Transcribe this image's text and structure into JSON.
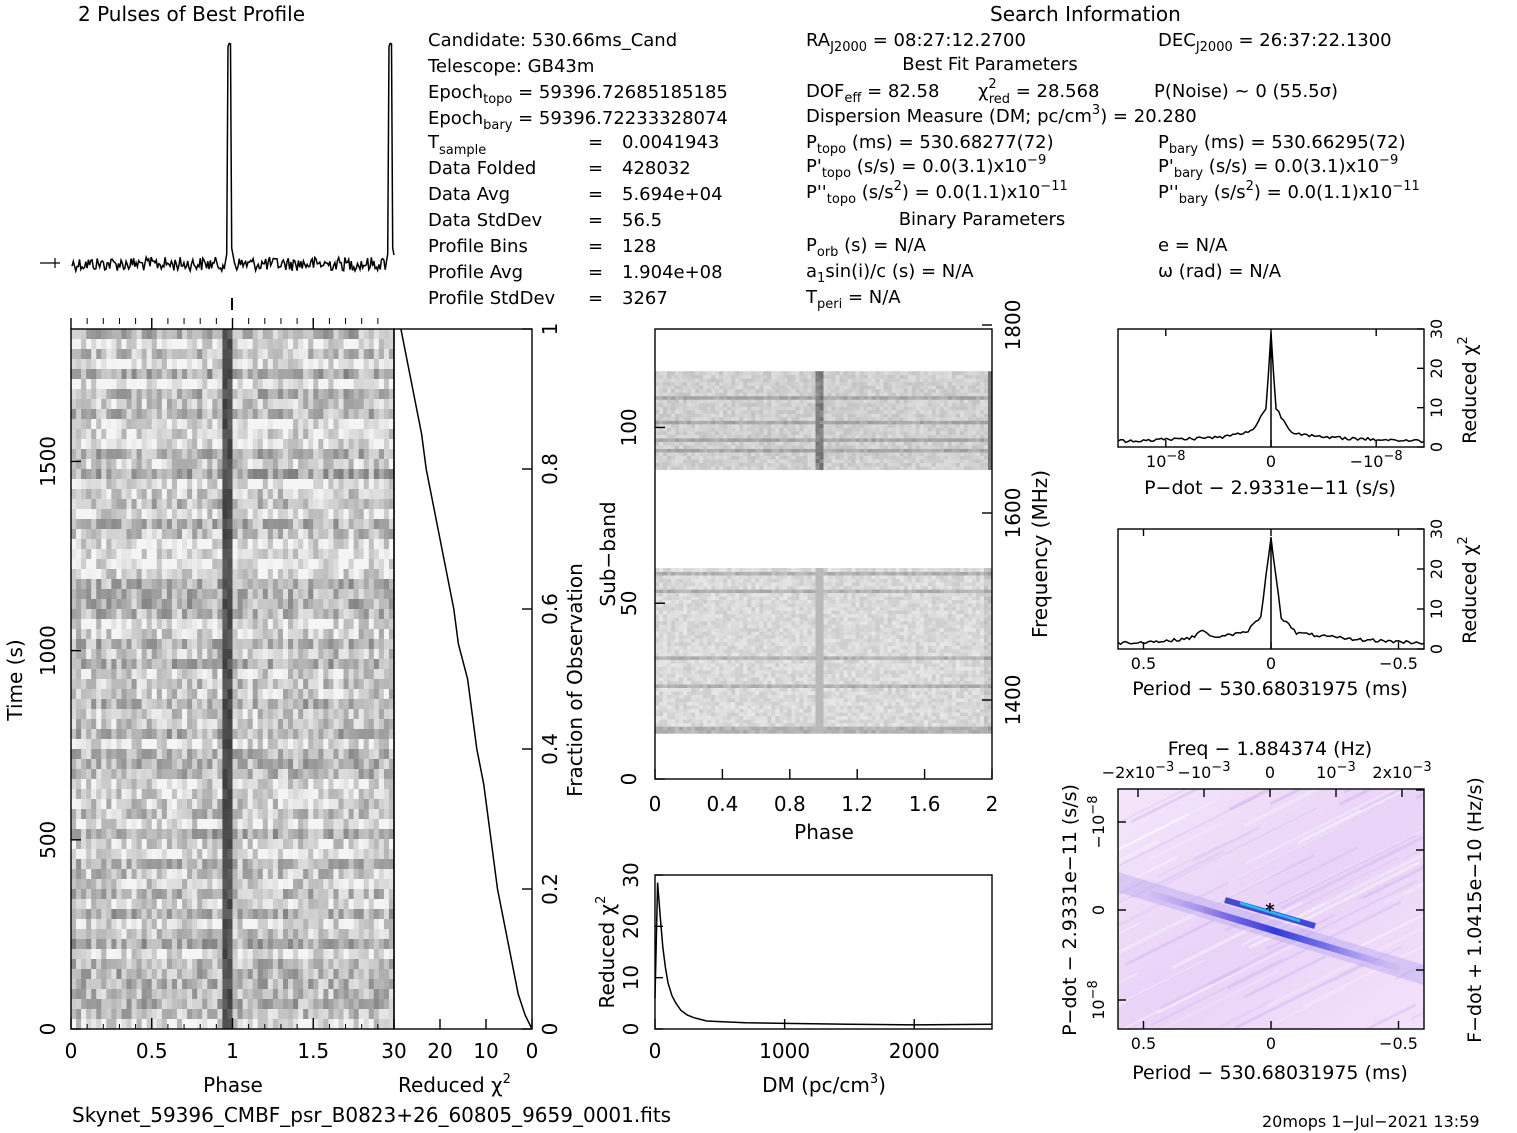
{
  "header": {
    "profile_title": "2 Pulses of Best Profile",
    "search_title": "Search Information"
  },
  "info": {
    "candidate": "Candidate:  530.66ms_Cand",
    "telescope": "Telescope:  GB43m",
    "epoch_topo_label": "Epoch",
    "epoch_topo_sub": "topo",
    "epoch_topo_val": " = 59396.72685185185",
    "epoch_bary_label": "Epoch",
    "epoch_bary_sub": "bary",
    "epoch_bary_val": " = 59396.72233328074",
    "tsample_label": "T",
    "tsample_sub": "sample",
    "tsample_eq": "=",
    "tsample_val": "0.0041943",
    "rows": [
      {
        "label": "Data Folded",
        "eq": "=",
        "val": "428032"
      },
      {
        "label": "Data Avg",
        "eq": "=",
        "val": "5.694e+04"
      },
      {
        "label": "Data StdDev",
        "eq": "=",
        "val": "56.5"
      },
      {
        "label": "Profile Bins",
        "eq": "=",
        "val": "128"
      },
      {
        "label": "Profile Avg",
        "eq": "=",
        "val": "1.904e+08"
      },
      {
        "label": "Profile StdDev",
        "eq": "=",
        "val": "3267"
      }
    ]
  },
  "search": {
    "ra_label": "RA",
    "ra_sub": "J2000",
    "ra_val": " = 08:27:12.2700",
    "dec_label": "DEC",
    "dec_sub": "J2000",
    "dec_val": " = 26:37:22.1300",
    "best_fit_title": "Best Fit Parameters",
    "dof_label": "DOF",
    "dof_sub": "eff",
    "dof_val": " = 82.58",
    "chi_label": "χ",
    "chi_sup": "2",
    "chi_sub": "red",
    "chi_val": " = 28.568",
    "pnoise": "P(Noise) ~ 0    (55.5σ)",
    "dm_label": "Dispersion Measure (DM; pc/cm",
    "dm_sup": "3",
    "dm_val": ") = 20.280",
    "ptopo_label": "P",
    "ptopo_sub": "topo",
    "ptopo_val": " (ms) =  530.68277(72)",
    "pbary_label": "P",
    "pbary_sub": "bary",
    "pbary_val": " (ms) =  530.66295(72)",
    "pdtopo_label": "P'",
    "pdtopo_sub": "topo",
    "pdtopo_val": " (s/s) = 0.0(3.1)x10",
    "pdtopo_exp": "−9",
    "pdbary_label": "P'",
    "pdbary_sub": "bary",
    "pdbary_val": " (s/s) = 0.0(3.1)x10",
    "pdbary_exp": "−9",
    "pddtopo_label": "P''",
    "pddtopo_sub": "topo",
    "pddtopo_val1": " (s/s",
    "pddtopo_sup": "2",
    "pddtopo_val2": ") = 0.0(1.1)x10",
    "pddtopo_exp": "−11",
    "pddbary_label": "P''",
    "pddbary_sub": "bary",
    "pddbary_val1": " (s/s",
    "pddbary_sup": "2",
    "pddbary_val2": ") = 0.0(1.1)x10",
    "pddbary_exp": "−11",
    "binary_title": "Binary Parameters",
    "porb_label": "P",
    "porb_sub": "orb",
    "porb_val": " (s) = N/A",
    "e_val": "e = N/A",
    "a1_label": "a",
    "a1_sub": "1",
    "a1_val": "sin(i)/c (s) = N/A",
    "omega_val": "ω (rad) = N/A",
    "tperi_label": "T",
    "tperi_sub": "peri",
    "tperi_val": " = N/A"
  },
  "footer": {
    "filename": "Skynet_59396_CMBF_psr_B0823+26_60805_9659_0001.fits",
    "stamp": "20mops   1−Jul−2021 13:59"
  },
  "chart_data": [
    {
      "id": "pulse-profile",
      "type": "line",
      "title": "2 Pulses of Best Profile",
      "x_range": [
        0,
        2
      ],
      "peaks_at_phase": [
        0.98,
        1.98
      ],
      "baseline_relative": 0.0,
      "peak_relative": 1.0
    },
    {
      "id": "time-phase",
      "type": "heatmap",
      "xlabel": "Phase",
      "ylabel": "Time (s)",
      "xlim": [
        0,
        2
      ],
      "ylim": [
        0,
        1850
      ],
      "x_ticks": [
        "0",
        "0.5",
        "1",
        "1.5"
      ],
      "y_ticks": [
        "0",
        "500",
        "1000",
        "1500"
      ],
      "pulse_phase": [
        0.98
      ]
    },
    {
      "id": "chi2-vs-time",
      "type": "line",
      "xlabel": "Reduced χ",
      "xlabel_sup": "2",
      "ylabel": "Fraction of Observation",
      "xlim": [
        30,
        0
      ],
      "ylim": [
        0,
        1
      ],
      "x_ticks": [
        "30",
        "20",
        "10",
        "0"
      ],
      "y_ticks": [
        "0",
        "0.2",
        "0.4",
        "0.6",
        "0.8",
        "1"
      ],
      "points": [
        [
          0,
          0.0
        ],
        [
          1.5,
          0.02
        ],
        [
          3,
          0.05
        ],
        [
          4.5,
          0.1
        ],
        [
          6,
          0.15
        ],
        [
          7.5,
          0.2
        ],
        [
          8.5,
          0.25
        ],
        [
          9.5,
          0.3
        ],
        [
          10.5,
          0.35
        ],
        [
          12,
          0.4
        ],
        [
          13,
          0.45
        ],
        [
          14,
          0.5
        ],
        [
          16,
          0.55
        ],
        [
          17,
          0.6
        ],
        [
          18.5,
          0.65
        ],
        [
          20,
          0.7
        ],
        [
          21.5,
          0.75
        ],
        [
          23,
          0.8
        ],
        [
          24,
          0.85
        ],
        [
          25.5,
          0.9
        ],
        [
          27,
          0.95
        ],
        [
          28.5,
          1.0
        ]
      ]
    },
    {
      "id": "subband-phase",
      "type": "heatmap",
      "xlabel": "Phase",
      "ylabel": "Sub−band",
      "y2label": "Frequency (MHz)",
      "xlim": [
        0,
        2
      ],
      "ylim": [
        0,
        128
      ],
      "x_ticks": [
        "0",
        "0.4",
        "0.8",
        "1.2",
        "1.6",
        "2"
      ],
      "y_ticks": [
        "0",
        "50",
        "100"
      ],
      "y2_ticks": [
        "1400",
        "1600",
        "1800"
      ],
      "bands": [
        [
          13,
          60
        ],
        [
          88,
          116
        ]
      ],
      "pulse_phase": [
        0.98
      ]
    },
    {
      "id": "chi2-vs-dm",
      "type": "line",
      "xlabel": "DM (pc/cm",
      "xlabel_sup": "3",
      "ylabel": "Reduced χ",
      "ylabel_sup": "2",
      "xlim": [
        0,
        2600
      ],
      "ylim": [
        0,
        30
      ],
      "x_ticks": [
        "0",
        "1000",
        "2000"
      ],
      "y_ticks": [
        "0",
        "10",
        "20",
        "30"
      ],
      "points": [
        [
          0,
          6
        ],
        [
          20,
          28.5
        ],
        [
          40,
          22
        ],
        [
          60,
          16
        ],
        [
          80,
          12
        ],
        [
          100,
          9
        ],
        [
          130,
          6.5
        ],
        [
          160,
          5
        ],
        [
          200,
          3.8
        ],
        [
          250,
          2.8
        ],
        [
          300,
          2.2
        ],
        [
          400,
          1.6
        ],
        [
          500,
          1.3
        ],
        [
          700,
          1.1
        ],
        [
          1000,
          1.0
        ],
        [
          1500,
          0.9
        ],
        [
          2000,
          0.9
        ],
        [
          2600,
          1.0
        ]
      ]
    },
    {
      "id": "chi2-vs-pdot",
      "type": "line",
      "xlabel": "P−dot − 2.9331e−11 (s/s)",
      "ylabel": "Reduced χ",
      "ylabel_sup": "2",
      "xlim": [
        -1.6e-08,
        1.6e-08
      ],
      "ylim": [
        0,
        30
      ],
      "x_ticks": [
        "10",
        "0",
        "−10"
      ],
      "x_tick_exp": [
        "−8",
        "",
        "−8"
      ],
      "y_ticks": [
        "0",
        "10",
        "20",
        "30"
      ],
      "points": [
        [
          -1.6e-08,
          1.5
        ],
        [
          -1e-08,
          2
        ],
        [
          -5e-09,
          2.5
        ],
        [
          -2e-09,
          4
        ],
        [
          -5e-10,
          10
        ],
        [
          0,
          29
        ],
        [
          5e-10,
          10
        ],
        [
          2e-09,
          4
        ],
        [
          5e-09,
          2.5
        ],
        [
          1e-08,
          2
        ],
        [
          1.6e-08,
          1.5
        ]
      ]
    },
    {
      "id": "chi2-vs-period",
      "type": "line",
      "xlabel": "Period − 530.68031975 (ms)",
      "ylabel": "Reduced χ",
      "ylabel_sup": "2",
      "xlim": [
        0.6,
        -0.6
      ],
      "ylim": [
        0,
        30
      ],
      "x_ticks": [
        "0.5",
        "0",
        "−0.5"
      ],
      "y_ticks": [
        "0",
        "10",
        "20",
        "30"
      ],
      "points": [
        [
          0.6,
          1.5
        ],
        [
          0.4,
          2
        ],
        [
          0.3,
          3
        ],
        [
          0.27,
          5
        ],
        [
          0.24,
          3
        ],
        [
          0.1,
          4
        ],
        [
          0.04,
          8
        ],
        [
          0.0,
          28
        ],
        [
          -0.04,
          8
        ],
        [
          -0.1,
          4
        ],
        [
          -0.3,
          2.5
        ],
        [
          -0.6,
          1.5
        ]
      ]
    },
    {
      "id": "ppdot-plane",
      "type": "heatmap",
      "title": "Freq − 1.884374 (Hz)",
      "xlabel": "Period − 530.68031975 (ms)",
      "ylabel": "P−dot − 2.9331e−11 (s/s)",
      "y2label": "F−dot + 1.0415e−10 (Hz/s)",
      "xlim": [
        0.6,
        -0.6
      ],
      "x_ticks": [
        "0.5",
        "0",
        "−0.5"
      ],
      "top_ticks": [
        "−2x10",
        "−10",
        "0",
        "10",
        "2x10"
      ],
      "top_exp": [
        "−3",
        "−3",
        "",
        "−3",
        "−3"
      ],
      "y_ticks": [
        "10",
        "0",
        "−10"
      ],
      "y_tick_exp": [
        "−8",
        "",
        "−8"
      ],
      "best_fit": [
        0,
        0
      ]
    }
  ]
}
